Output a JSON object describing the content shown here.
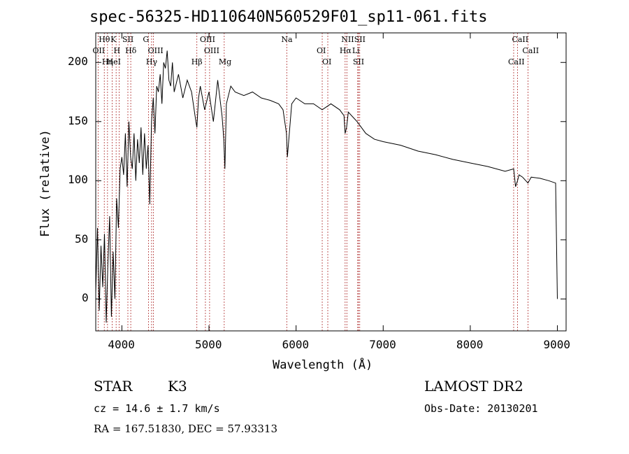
{
  "chart_data": {
    "type": "line",
    "title": "spec-56325-HD110640N560529F01_sp11-061.fits",
    "xlabel": "Wavelength (Å)",
    "ylabel": "Flux (relative)",
    "xlim": [
      3700,
      9100
    ],
    "ylim": [
      -27,
      225
    ],
    "x_ticks": [
      4000,
      5000,
      6000,
      7000,
      8000,
      9000
    ],
    "y_ticks": [
      0,
      50,
      100,
      150,
      200
    ],
    "series": [
      {
        "color": "#000000",
        "x": [
          3700,
          3720,
          3740,
          3760,
          3780,
          3800,
          3820,
          3840,
          3860,
          3880,
          3900,
          3920,
          3940,
          3960,
          3980,
          4000,
          4020,
          4040,
          4060,
          4080,
          4100,
          4120,
          4140,
          4160,
          4180,
          4200,
          4220,
          4240,
          4260,
          4280,
          4300,
          4320,
          4340,
          4360,
          4380,
          4400,
          4420,
          4440,
          4460,
          4480,
          4500,
          4520,
          4540,
          4560,
          4580,
          4600,
          4650,
          4700,
          4750,
          4800,
          4850,
          4861,
          4880,
          4900,
          4950,
          5000,
          5050,
          5100,
          5150,
          5170,
          5183,
          5200,
          5250,
          5300,
          5400,
          5500,
          5600,
          5700,
          5800,
          5850,
          5890,
          5900,
          5950,
          6000,
          6100,
          6200,
          6300,
          6400,
          6500,
          6550,
          6563,
          6580,
          6600,
          6700,
          6800,
          6900,
          7000,
          7200,
          7400,
          7600,
          7800,
          8000,
          8200,
          8400,
          8498,
          8520,
          8542,
          8560,
          8600,
          8662,
          8700,
          8800,
          8900,
          8980,
          9000
        ],
        "values": [
          5,
          60,
          -10,
          45,
          10,
          55,
          -20,
          30,
          70,
          -15,
          40,
          0,
          85,
          60,
          110,
          120,
          105,
          140,
          95,
          150,
          120,
          110,
          140,
          100,
          135,
          115,
          145,
          105,
          140,
          110,
          130,
          80,
          150,
          170,
          140,
          180,
          175,
          190,
          165,
          200,
          195,
          210,
          185,
          180,
          200,
          175,
          190,
          170,
          185,
          175,
          150,
          145,
          170,
          180,
          160,
          175,
          150,
          185,
          155,
          135,
          110,
          165,
          180,
          175,
          172,
          175,
          170,
          168,
          165,
          160,
          140,
          120,
          165,
          170,
          165,
          165,
          160,
          165,
          160,
          155,
          140,
          145,
          158,
          150,
          140,
          135,
          133,
          130,
          125,
          122,
          118,
          115,
          112,
          108,
          110,
          95,
          100,
          105,
          103,
          98,
          103,
          102,
          100,
          98,
          0
        ]
      }
    ],
    "line_markers": [
      {
        "label": "Hθ",
        "x": 3798
      },
      {
        "label": "OII",
        "x": 3727
      },
      {
        "label": "Hη",
        "x": 3835
      },
      {
        "label": "K",
        "x": 3934
      },
      {
        "label": "H",
        "x": 3969
      },
      {
        "label": "HeI",
        "x": 3889
      },
      {
        "label": "SII",
        "x": 4069
      },
      {
        "label": "Hδ",
        "x": 4102
      },
      {
        "label": "Hγ",
        "x": 4341
      },
      {
        "label": "G",
        "x": 4305
      },
      {
        "label": "OIII",
        "x": 4363
      },
      {
        "label": "Hβ",
        "x": 4861
      },
      {
        "label": "OIII",
        "x": 4959
      },
      {
        "label": "OIII",
        "x": 5007
      },
      {
        "label": "Mg",
        "x": 5175
      },
      {
        "label": "Na",
        "x": 5893
      },
      {
        "label": "OI",
        "x": 6300
      },
      {
        "label": "OI",
        "x": 6364
      },
      {
        "label": "NII",
        "x": 6583
      },
      {
        "label": "Hα",
        "x": 6563
      },
      {
        "label": "SII",
        "x": 6716
      },
      {
        "label": "SII",
        "x": 6731
      },
      {
        "label": "Li",
        "x": 6708
      },
      {
        "label": "CaII",
        "x": 8498
      },
      {
        "label": "CaII",
        "x": 8542
      },
      {
        "label": "CaII",
        "x": 8662
      }
    ]
  },
  "meta": {
    "class": "STAR",
    "subclass": "K3",
    "survey": "LAMOST DR2",
    "cz": "cz = 14.6 ± 1.7 km/s",
    "obs_date": "Obs-Date: 20130201",
    "radec": "RA = 167.51830, DEC =  57.93313"
  }
}
